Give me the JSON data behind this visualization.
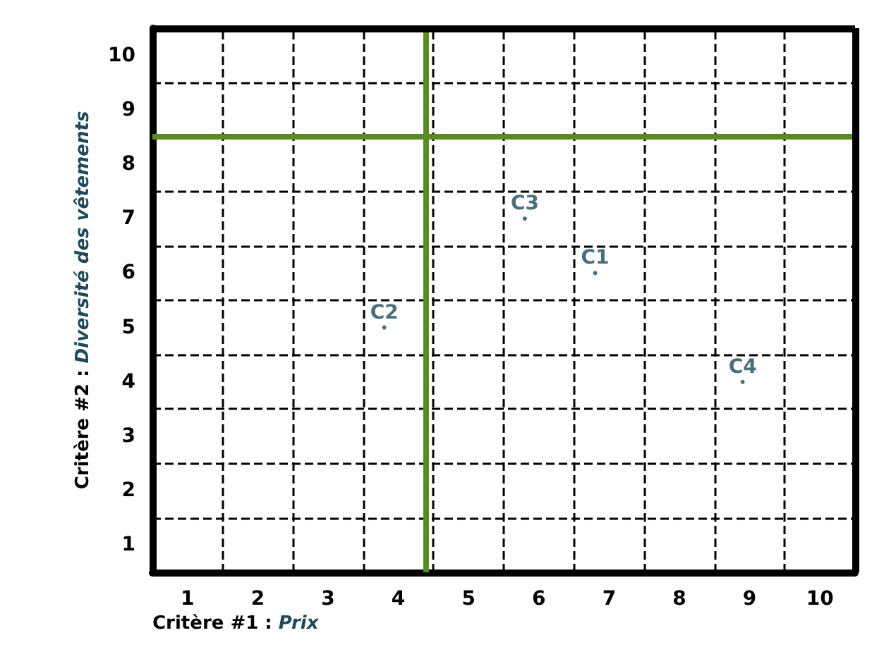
{
  "chart_data": {
    "type": "scatter",
    "xlabel": "Critère #1 : Prix",
    "ylabel": "Critère #2 : Diversité des vêtements",
    "xlim": [
      0.5,
      10.5
    ],
    "ylim": [
      0.5,
      10.5
    ],
    "xticks": [
      1,
      {
        "value": 1.5,
        "label": null
      },
      2,
      {
        "value": 2.5,
        "label": null
      },
      3,
      {
        "value": 3.5,
        "label": null
      },
      4,
      {
        "value": 4.5,
        "label": null
      },
      5,
      {
        "value": 5.5,
        "label": null
      },
      6,
      {
        "value": 6.5,
        "label": null
      },
      7,
      {
        "value": 7.5,
        "label": null
      },
      8,
      {
        "value": 8.5,
        "label": null
      },
      9,
      {
        "value": 9.5,
        "label": null
      },
      10
    ],
    "yticks": [
      1,
      {
        "value": 1.5,
        "label": null
      },
      2,
      {
        "value": 2.5,
        "label": null
      },
      3,
      {
        "value": 3.5,
        "label": null
      },
      4,
      {
        "value": 4.5,
        "label": null
      },
      5,
      {
        "value": 5.5,
        "label": null
      },
      6,
      {
        "value": 6.5,
        "label": null
      },
      7,
      {
        "value": 7.5,
        "label": null
      },
      8,
      {
        "value": 9.5,
        "label": null
      },
      9,
      10
    ],
    "grid": true,
    "line_style": "dashed",
    "ref_lines": [
      {
        "axis": "x",
        "value": 4.4,
        "label": null,
        "color": "#5a8a23"
      },
      {
        "axis": "y",
        "value": 8.5,
        "label": null,
        "color": "#5a8a23"
      }
    ],
    "series": [
      {
        "name": "C3",
        "color": "#1f4a5a",
        "x": [
          5.8
        ],
        "values": [
          7
        ]
      },
      {
        "name": "C1",
        "color": "#1f4a5a",
        "x": [
          6.8
        ],
        "values": [
          6
        ]
      },
      {
        "name": "C2",
        "color": "#1f4a5a",
        "x": [
          3.8
        ],
        "values": [
          5
        ]
      },
      {
        "name": "C4",
        "color": "#1f4a5a",
        "x": [
          8.9
        ],
        "values": [
          4
        ]
      }
    ]
  }
}
